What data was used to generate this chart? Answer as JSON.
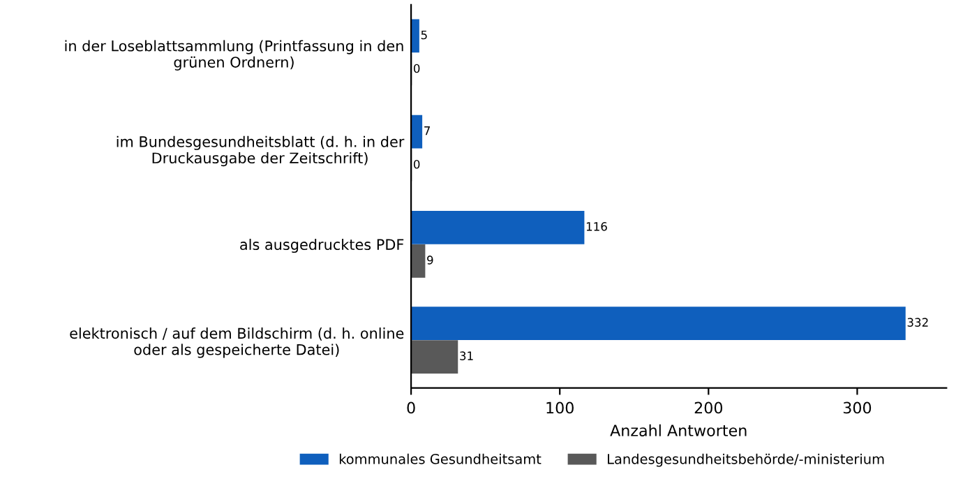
{
  "chart_data": {
    "type": "bar",
    "orientation": "horizontal",
    "xlabel": "Anzahl Antworten",
    "categories": [
      "in der Loseblattsammlung (Printfassung in den\ngrünen Ordnern)",
      "im Bundesgesundheitsblatt (d. h. in der\nDruckausgabe der Zeitschrift)",
      "als ausgedrucktes PDF",
      "elektronisch / auf dem Bildschirm (d. h. online\noder als gespeicherte Datei)"
    ],
    "series": [
      {
        "name": "kommunales Gesundheitsamt",
        "color": "#0f5fbd",
        "values": [
          5,
          7,
          116,
          332
        ]
      },
      {
        "name": "Landesgesundheitsbehörde/-ministerium",
        "color": "#595959",
        "values": [
          0,
          0,
          9,
          31
        ]
      }
    ],
    "xlim": [
      0,
      360
    ],
    "xticks": [
      0,
      100,
      200,
      300
    ],
    "data_labels": true,
    "legend": "bottom",
    "grid": false
  }
}
